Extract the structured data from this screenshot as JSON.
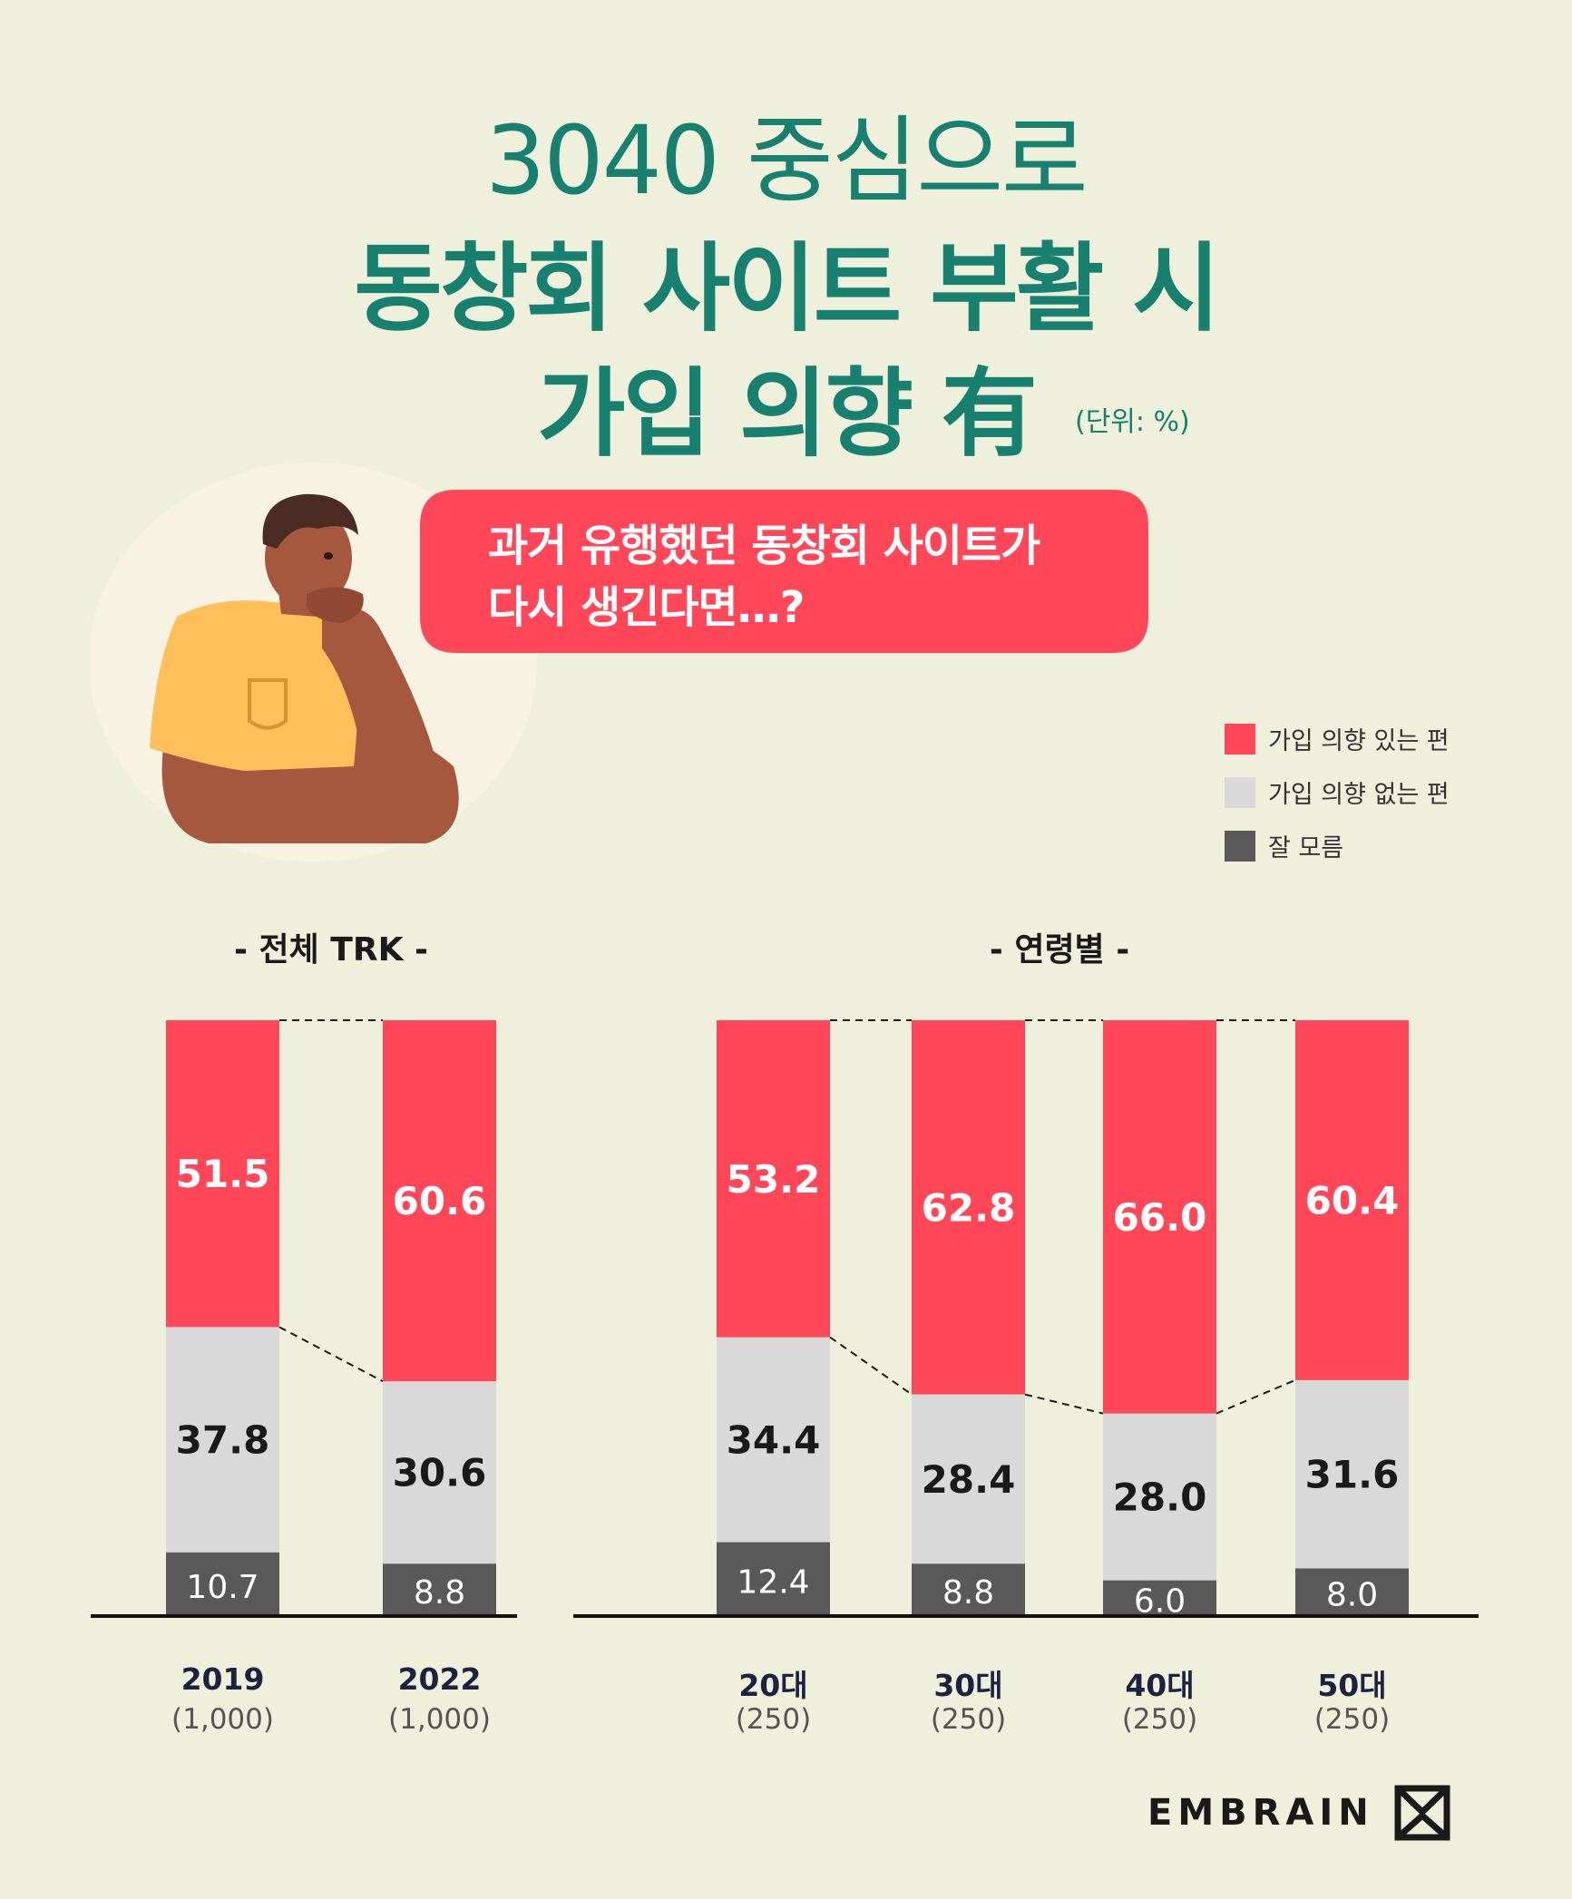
{
  "title": {
    "line1": "3040 중심으로",
    "line2": "동창회 사이트 부활 시",
    "line3": "가입 의향 有",
    "unit": "(단위: %)"
  },
  "bubble": {
    "line1": "과거 유행했던 동창회 사이트가",
    "line2": "다시 생긴다면…?"
  },
  "legend": [
    {
      "label": "가입 의향 있는 편",
      "color": "#ff4759"
    },
    {
      "label": "가입 의향 없는 편",
      "color": "#d9d9d9"
    },
    {
      "label": "잘 모름",
      "color": "#595959"
    }
  ],
  "sections": {
    "total": "- 전체 TRK -",
    "age": "- 연령별 -"
  },
  "chart_data": [
    {
      "type": "bar",
      "stacked": true,
      "title": "- 전체 TRK -",
      "categories": [
        "2019",
        "2022"
      ],
      "sample_sizes": [
        "(1,000)",
        "(1,000)"
      ],
      "series": [
        {
          "name": "가입 의향 있는 편",
          "values": [
            51.5,
            60.6
          ]
        },
        {
          "name": "가입 의향 없는 편",
          "values": [
            37.8,
            30.6
          ]
        },
        {
          "name": "잘 모름",
          "values": [
            10.7,
            8.8
          ]
        }
      ],
      "value_labels": {
        "가입 의향 있는 편": [
          "51.5",
          "60.6"
        ],
        "가입 의향 없는 편": [
          "37.8",
          "30.6"
        ],
        "잘 모름": [
          "10.7",
          "8.8"
        ]
      }
    },
    {
      "type": "bar",
      "stacked": true,
      "title": "- 연령별 -",
      "categories": [
        "20대",
        "30대",
        "40대",
        "50대"
      ],
      "sample_sizes": [
        "(250)",
        "(250)",
        "(250)",
        "(250)"
      ],
      "series": [
        {
          "name": "가입 의향 있는 편",
          "values": [
            53.2,
            62.8,
            66.0,
            60.4
          ]
        },
        {
          "name": "가입 의향 없는 편",
          "values": [
            34.4,
            28.4,
            28.0,
            31.6
          ]
        },
        {
          "name": "잘 모름",
          "values": [
            12.4,
            8.8,
            6.0,
            8.0
          ]
        }
      ],
      "value_labels": {
        "가입 의향 있는 편": [
          "53.2",
          "62.8",
          "66.0",
          "60.4"
        ],
        "가입 의향 없는 편": [
          "34.4",
          "28.4",
          "28.0",
          "31.6"
        ],
        "잘 모름": [
          "12.4",
          "8.8",
          "6.0",
          "8.0"
        ]
      }
    }
  ],
  "logo": "EMBRAIN"
}
